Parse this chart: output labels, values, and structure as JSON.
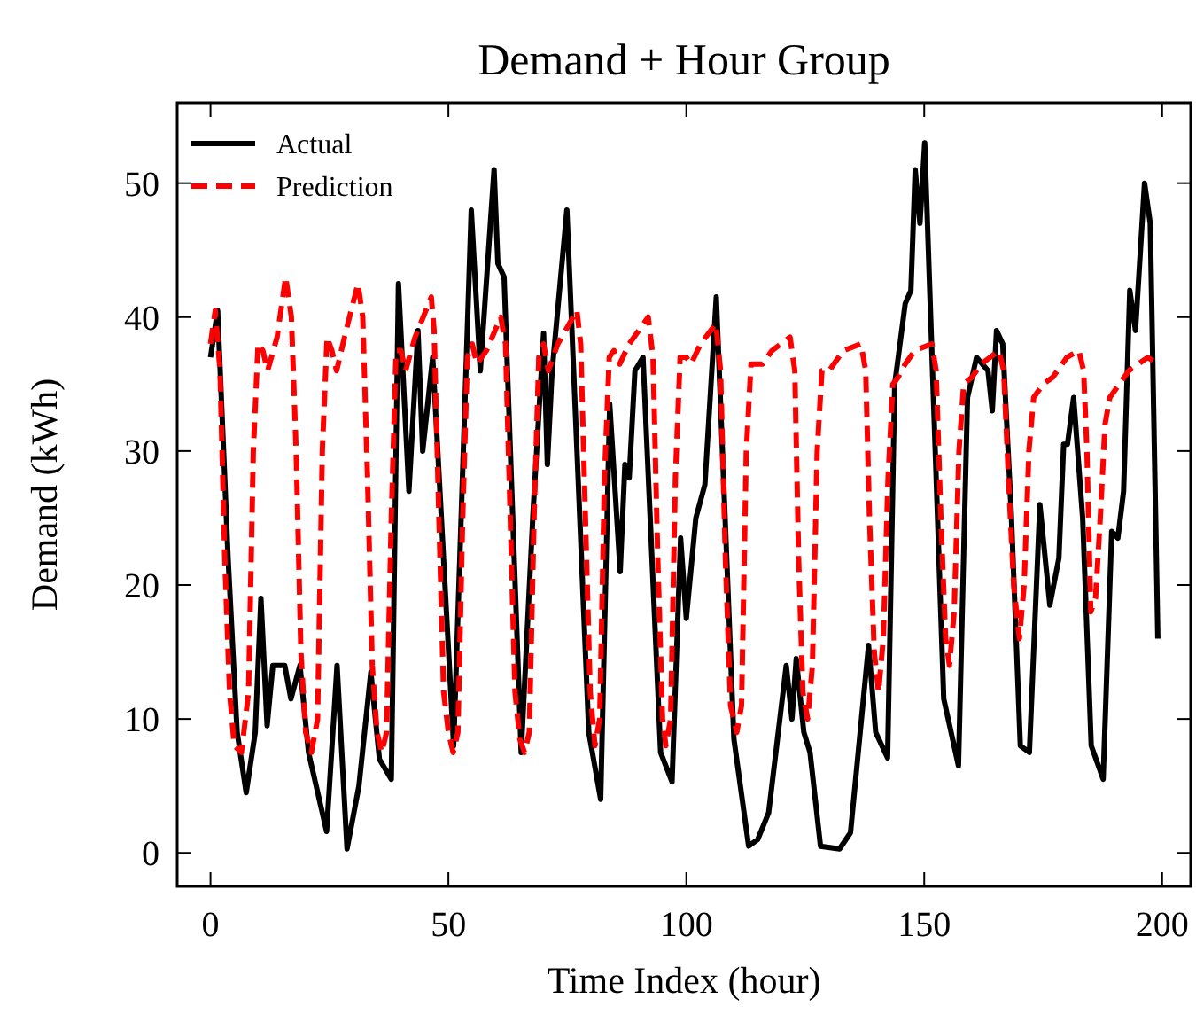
{
  "chart_data": {
    "type": "line",
    "title": "Demand + Hour Group",
    "xlabel": "Time Index (hour)",
    "ylabel": "Demand (kWh)",
    "xlim": [
      -7,
      206
    ],
    "ylim": [
      -2.5,
      56
    ],
    "xticks": [
      0,
      50,
      100,
      150,
      200
    ],
    "yticks": [
      0,
      10,
      20,
      30,
      40,
      50
    ],
    "grid": false,
    "legend": "top left",
    "marker": "none",
    "series": [
      {
        "name": "Actual",
        "color": "#000000",
        "line_style": "solid",
        "x": [
          0,
          1.5,
          3.7,
          5.6,
          7.5,
          9.4,
          10.6,
          11.9,
          13.1,
          15.6,
          16.9,
          18.8,
          20.6,
          24.4,
          26.6,
          28.7,
          31.2,
          33.7,
          35.5,
          38,
          39.5,
          41.7,
          43.6,
          44.6,
          46.7,
          51.1,
          53.6,
          54.8,
          56.7,
          59.6,
          60.4,
          61.7,
          65.3,
          67.8,
          70,
          70.8,
          71.8,
          74.9,
          79.5,
          82,
          83.9,
          86.1,
          87.1,
          88,
          89.2,
          90.9,
          94.6,
          97,
          98.8,
          100,
          102,
          103.9,
          106.3,
          110,
          113.1,
          115,
          117.3,
          121,
          122.2,
          123.1,
          124.7,
          126,
          128.2,
          132.2,
          134.5,
          138.3,
          139.8,
          142.3,
          143.8,
          146,
          147.2,
          148.1,
          149.1,
          150.1,
          154.1,
          157.2,
          159.1,
          161,
          163.4,
          164.3,
          165.2,
          166.5,
          168.3,
          170.2,
          172.1,
          174.3,
          176.4,
          178.3,
          179.3,
          180.1,
          181.4,
          183.3,
          185.1,
          187.6,
          189.4,
          190.7,
          191.9,
          193.2,
          194.4,
          196.3,
          197.5,
          199.1
        ],
        "values": [
          37,
          40.5,
          22,
          9,
          4.5,
          9,
          19,
          9.5,
          14,
          14,
          11.5,
          14,
          7.5,
          1.6,
          14,
          0.3,
          5,
          13.5,
          7,
          5.5,
          42.5,
          27,
          39,
          30,
          37,
          8,
          35,
          48,
          36,
          51,
          44,
          43,
          7.5,
          25.5,
          38.8,
          29,
          36,
          48,
          9,
          4,
          33.5,
          21,
          29,
          28,
          36,
          37,
          7.5,
          5.3,
          23.5,
          17.5,
          25,
          27.5,
          41.5,
          8.5,
          0.5,
          1,
          3,
          14,
          10,
          14.5,
          9,
          7.5,
          0.5,
          0.3,
          1.5,
          15.5,
          9,
          7.1,
          35,
          41,
          42,
          51,
          47,
          53,
          11.5,
          6.5,
          34,
          37,
          36,
          33,
          39,
          38,
          25.3,
          8,
          7.5,
          26,
          18.5,
          22,
          30.5,
          30.5,
          34,
          25,
          8,
          5.5,
          24,
          23.5,
          27,
          42,
          39,
          50,
          47,
          16
        ]
      },
      {
        "name": "Prediction",
        "color": "#ff0000",
        "line_style": "dashed",
        "x": [
          0,
          1,
          2,
          3,
          4,
          5,
          6.5,
          8,
          9,
          10,
          11,
          12,
          14,
          15.8,
          17,
          18,
          19,
          20,
          21.2,
          22.5,
          23.5,
          24.5,
          25.5,
          26.5,
          28.5,
          31,
          32,
          33,
          34,
          35,
          36,
          37,
          38,
          39,
          40,
          41,
          43,
          46.4,
          47,
          48,
          49,
          50,
          51,
          52,
          53,
          54,
          55,
          56,
          58,
          61,
          62,
          63,
          64,
          65,
          66,
          67,
          68,
          69,
          70,
          71,
          73,
          77,
          77.8,
          78.8,
          79.8,
          80.8,
          81.8,
          82.8,
          83.8,
          84.8,
          86,
          88,
          92,
          93,
          94,
          95,
          95.7,
          96.7,
          97.7,
          98.7,
          100,
          101,
          103,
          106.2,
          107.2,
          108.2,
          109.3,
          110.6,
          111.6,
          112.6,
          113.6,
          115,
          116,
          118,
          121.8,
          122.8,
          123.6,
          124.5,
          125.5,
          126.5,
          127.5,
          128.5,
          130,
          131,
          133,
          136.7,
          137.7,
          138.5,
          139.5,
          140.4,
          141.4,
          142.4,
          143.4,
          144.5,
          146,
          148,
          151.6,
          152.5,
          153.5,
          154.5,
          155.3,
          156.3,
          157.3,
          158.3,
          160,
          162,
          165.7,
          166.7,
          167.7,
          168.8,
          170,
          171,
          172,
          173,
          175,
          177,
          180,
          182.5,
          183.5,
          184.2,
          185,
          186,
          187,
          188,
          189,
          191,
          193,
          197,
          199
        ],
        "values": [
          38,
          40.5,
          36,
          22,
          12,
          8,
          7.5,
          12,
          30,
          38,
          37.5,
          36,
          38.5,
          43,
          40,
          30,
          15,
          9,
          7.5,
          10,
          30,
          38.5,
          37.5,
          36,
          39,
          42.5,
          40,
          28,
          14,
          9,
          7.5,
          9,
          25,
          37.5,
          37.5,
          36,
          38.5,
          41.5,
          39,
          25,
          12,
          9,
          7.5,
          9,
          25,
          37,
          38,
          36.5,
          37.5,
          40,
          38,
          25,
          12,
          8.5,
          7.5,
          9,
          25,
          37,
          38,
          36,
          38,
          40.5,
          38,
          25,
          12,
          8,
          10,
          28,
          37,
          37.5,
          36.5,
          38,
          40,
          37,
          22,
          10,
          8,
          10,
          28,
          37,
          37,
          36.5,
          38,
          39.5,
          36,
          22,
          11,
          9,
          11,
          30,
          36.5,
          36.5,
          36.5,
          37.5,
          38.5,
          36,
          22,
          12,
          10,
          14,
          30,
          36,
          36,
          36.5,
          37.5,
          38,
          36,
          25,
          15,
          12,
          16,
          28,
          35,
          35.5,
          36.5,
          37.5,
          38,
          36,
          25,
          16,
          14,
          18,
          30,
          35,
          35.5,
          36.5,
          37.5,
          36,
          28,
          20,
          16,
          20,
          30,
          34,
          35,
          35.5,
          37,
          37.5,
          36,
          30,
          18,
          19,
          25,
          32,
          34,
          35,
          36,
          37,
          36.5
        ]
      }
    ]
  }
}
